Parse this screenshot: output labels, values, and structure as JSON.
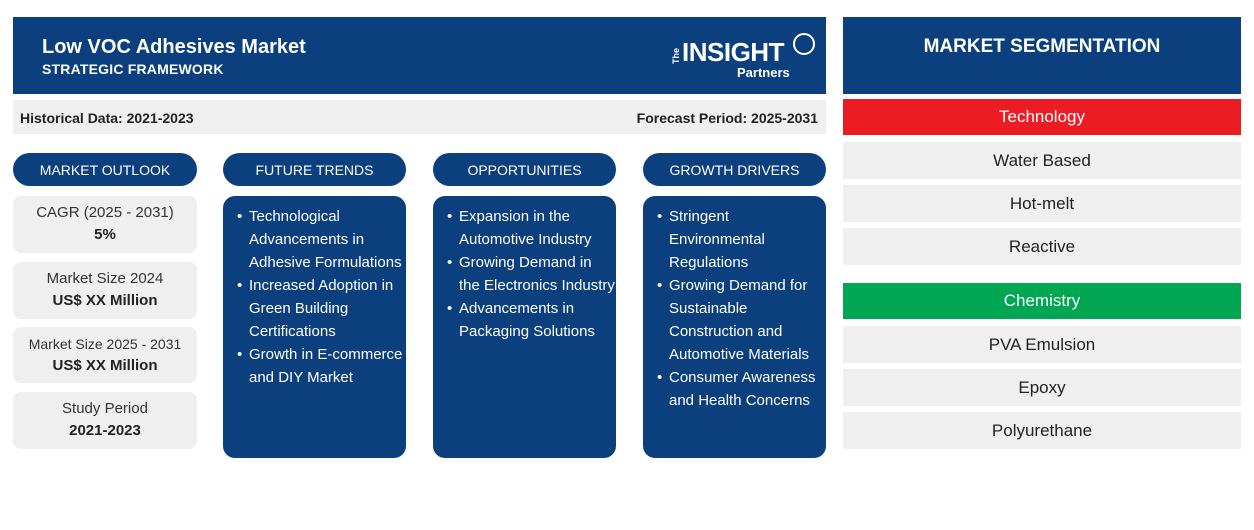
{
  "header": {
    "title": "Low VOC Adhesives Market",
    "subtitle": "STRATEGIC FRAMEWORK",
    "logo": {
      "the": "The",
      "insight": "INSIGHT",
      "partners": "Partners"
    }
  },
  "period": {
    "historical": "Historical Data: 2021-2023",
    "forecast": "Forecast Period: 2025-2031"
  },
  "columns": {
    "market_outlook": "MARKET OUTLOOK",
    "future_trends": "FUTURE TRENDS",
    "opportunities": "OPPORTUNITIES",
    "growth_drivers": "GROWTH DRIVERS"
  },
  "outlook": [
    {
      "label": "CAGR (2025 - 2031)",
      "value": "5%"
    },
    {
      "label": "Market Size 2024",
      "value": "US$ XX Million"
    },
    {
      "label": "Market Size 2025 - 2031",
      "value": "US$ XX Million"
    },
    {
      "label": "Study Period",
      "value": "2021-2023"
    }
  ],
  "future_trends": [
    "Technological Advancements in Adhesive Formulations",
    "Increased Adoption in Green Building Certifications",
    "Growth in E-commerce and DIY Market"
  ],
  "opportunities": [
    "Expansion in the Automotive Industry",
    "Growing Demand in the Electronics Industry",
    "Advancements in Packaging Solutions"
  ],
  "growth_drivers": [
    "Stringent Environmental Regulations",
    "Growing Demand for Sustainable Construction and Automotive Materials",
    "Consumer Awareness and Health Concerns"
  ],
  "segmentation": {
    "title": "MARKET SEGMENTATION",
    "technology": {
      "label": "Technology",
      "color": "#ec1c24",
      "items": [
        "Water Based",
        "Hot-melt",
        "Reactive"
      ]
    },
    "chemistry": {
      "label": "Chemistry",
      "color": "#00a651",
      "items": [
        "PVA Emulsion",
        "Epoxy",
        "Polyurethane"
      ]
    }
  }
}
